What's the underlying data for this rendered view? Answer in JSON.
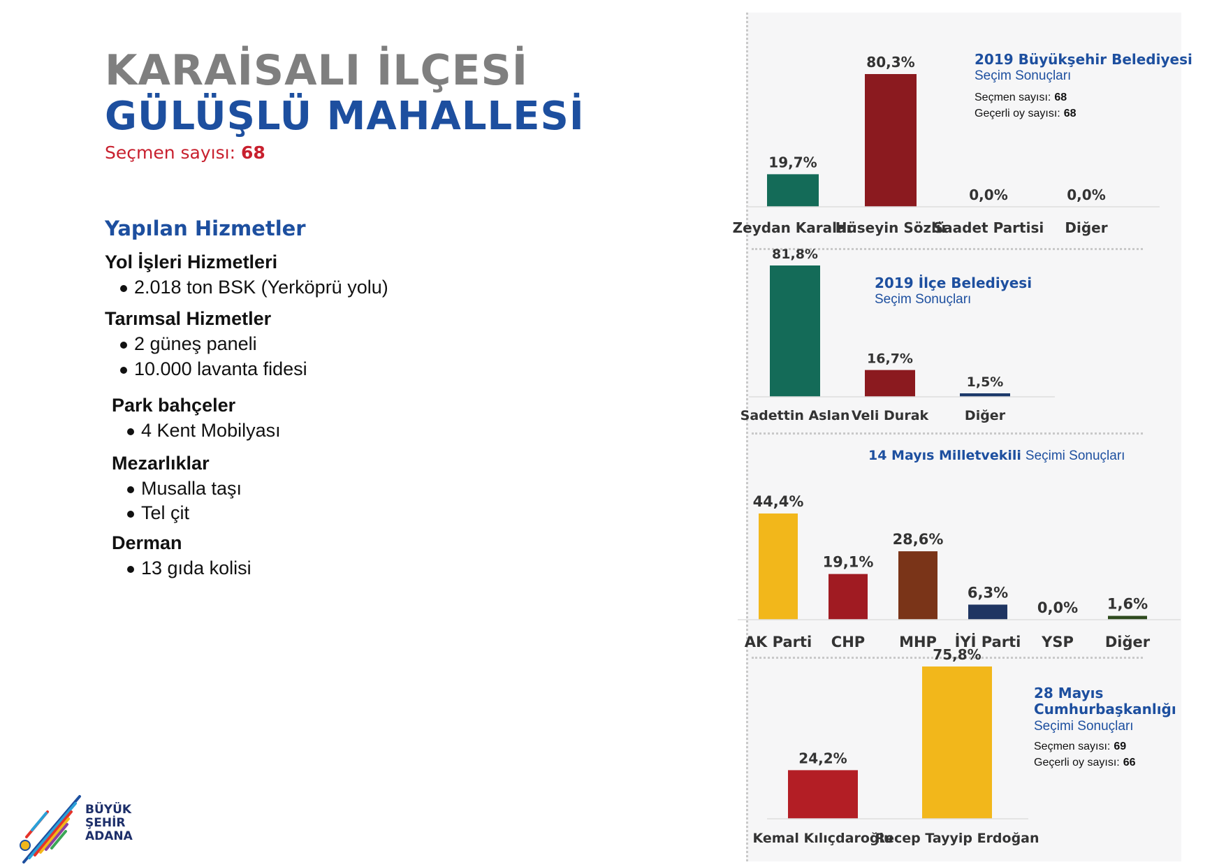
{
  "header": {
    "title_line1": "KARAİSALI İLÇESİ",
    "title_line2": "GÜLÜŞLÜ MAHALLESİ",
    "voter_label": "Seçmen sayısı:",
    "voter_value": "68"
  },
  "services": {
    "title": "Yapılan Hizmetler",
    "groups": [
      {
        "name": "Yol İşleri Hizmetleri",
        "items": [
          "2.018 ton BSK  (Yerköprü yolu)"
        ]
      },
      {
        "name": "Tarımsal Hizmetler",
        "items": [
          "2 güneş paneli",
          "10.000 lavanta fidesi"
        ]
      },
      {
        "name": "Park bahçeler",
        "items": [
          "4 Kent Mobilyası"
        ]
      },
      {
        "name": "Mezarlıklar",
        "items": [
          "Musalla taşı",
          "Tel çit"
        ]
      },
      {
        "name": "Derman",
        "items": [
          "13 gıda kolisi"
        ]
      }
    ]
  },
  "logo": {
    "line1": "BÜYÜK",
    "line2": "ŞEHİR",
    "line3": "ADANA"
  },
  "chart_data": [
    {
      "type": "bar",
      "title": "2019 Büyükşehir Belediyesi",
      "subtitle": "Seçim Sonuçları",
      "info": [
        {
          "label": "Seçmen sayısı:",
          "value": "68"
        },
        {
          "label": "Geçerli oy sayısı:",
          "value": "68"
        }
      ],
      "categories": [
        "Zeydan Karalar",
        "Hüseyin Sözlü",
        "Saadet Partisi",
        "Diğer"
      ],
      "values": [
        19.7,
        80.3,
        0.0,
        0.0
      ],
      "value_labels": [
        "19,7%",
        "80,3%",
        "0,0%",
        "0,0%"
      ],
      "colors": [
        "#146b58",
        "#8b1a1f",
        "#888888",
        "#888888"
      ],
      "ylim": [
        0,
        100
      ]
    },
    {
      "type": "bar",
      "title": "2019 İlçe Belediyesi",
      "subtitle": "Seçim Sonuçları",
      "info": [],
      "categories": [
        "Sadettin Aslan",
        "Veli Durak",
        "Diğer"
      ],
      "values": [
        81.8,
        16.7,
        1.5
      ],
      "value_labels": [
        "81,8%",
        "16,7%",
        "1,5%"
      ],
      "colors": [
        "#146b58",
        "#8b1a1f",
        "#1d3a6b"
      ],
      "ylim": [
        0,
        100
      ]
    },
    {
      "type": "bar",
      "title": "14 Mayıs Milletvekili",
      "subtitle": "Seçimi Sonuçları",
      "info": [],
      "categories": [
        "AK Parti",
        "CHP",
        "MHP",
        "İYİ Parti",
        "YSP",
        "Diğer"
      ],
      "values": [
        44.4,
        19.1,
        28.6,
        6.3,
        0.0,
        1.6
      ],
      "value_labels": [
        "44,4%",
        "19,1%",
        "28,6%",
        "6,3%",
        "0,0%",
        "1,6%"
      ],
      "colors": [
        "#f2b71b",
        "#a01b22",
        "#7a3418",
        "#1f3562",
        "#888888",
        "#2e4a1e"
      ],
      "ylim": [
        0,
        100
      ]
    },
    {
      "type": "bar",
      "title": "28 Mayıs Cumhurbaşkanlığı",
      "subtitle": "Seçimi Sonuçları",
      "info": [
        {
          "label": "Seçmen sayısı:",
          "value": "69"
        },
        {
          "label": "Geçerli oy sayısı:",
          "value": "66"
        }
      ],
      "categories": [
        "Kemal Kılıçdaroğlu",
        "Recep Tayyip Erdoğan"
      ],
      "values": [
        24.2,
        75.8
      ],
      "value_labels": [
        "24,2%",
        "75,8%"
      ],
      "colors": [
        "#b31e25",
        "#f2b71b"
      ],
      "ylim": [
        0,
        100
      ]
    }
  ]
}
